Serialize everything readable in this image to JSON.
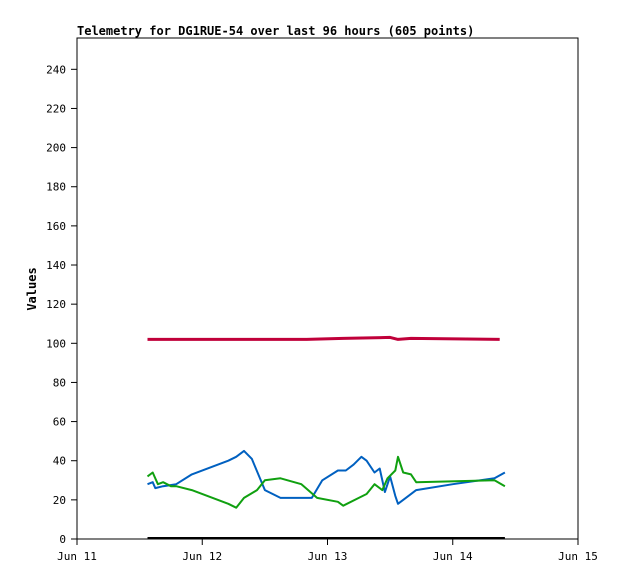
{
  "chart_data": {
    "type": "line",
    "title": "Telemetry for DG1RUE-54 over last 96 hours (605 points)",
    "xlabel": "",
    "ylabel": "Values",
    "x_ticks": [
      "Jun 11",
      "Jun 12",
      "Jun 13",
      "Jun 14",
      "Jun 15"
    ],
    "xlim": [
      "Jun 11",
      "Jun 15"
    ],
    "y_ticks": [
      0,
      20,
      40,
      60,
      80,
      100,
      120,
      140,
      160,
      180,
      200,
      220,
      240
    ],
    "ylim": [
      0,
      256
    ],
    "grid": false,
    "legend": "none",
    "series": [
      {
        "color": "#c0003a",
        "x": [
          "Jun 11 13:30",
          "Jun 12 06:00",
          "Jun 12 20:00",
          "Jun 13 03:00",
          "Jun 13 12:00",
          "Jun 13 13:30",
          "Jun 13 16:00",
          "Jun 14 09:00"
        ],
        "y": [
          102,
          102,
          102,
          102.5,
          103,
          102,
          102.5,
          102
        ]
      },
      {
        "color": "#0060c0",
        "x": [
          "Jun 11 13:30",
          "Jun 11 14:30",
          "Jun 11 15:00",
          "Jun 11 16:30",
          "Jun 11 19:00",
          "Jun 11 22:00",
          "Jun 12 02:00",
          "Jun 12 05:00",
          "Jun 12 06:30",
          "Jun 12 08:00",
          "Jun 12 09:30",
          "Jun 12 12:00",
          "Jun 12 15:00",
          "Jun 12 18:00",
          "Jun 12 21:00",
          "Jun 12 23:00",
          "Jun 13 02:00",
          "Jun 13 03:30",
          "Jun 13 05:00",
          "Jun 13 06:30",
          "Jun 13 07:30",
          "Jun 13 09:00",
          "Jun 13 10:00",
          "Jun 13 11:00",
          "Jun 13 12:00",
          "Jun 13 13:00",
          "Jun 13 13:30",
          "Jun 13 15:00",
          "Jun 13 17:00",
          "Jun 14 00:00",
          "Jun 14 08:00",
          "Jun 14 10:00"
        ],
        "y": [
          28,
          29,
          26,
          27,
          28,
          33,
          37,
          40,
          42,
          45,
          41,
          25,
          21,
          21,
          21,
          30,
          35,
          35,
          38,
          42,
          40,
          34,
          36,
          24,
          32,
          22,
          18,
          21,
          25,
          28,
          31,
          34
        ]
      },
      {
        "color": "#10a010",
        "x": [
          "Jun 11 13:30",
          "Jun 11 14:30",
          "Jun 11 15:30",
          "Jun 11 16:30",
          "Jun 11 18:00",
          "Jun 11 19:00",
          "Jun 11 22:00",
          "Jun 12 02:00",
          "Jun 12 05:00",
          "Jun 12 06:30",
          "Jun 12 08:00",
          "Jun 12 10:30",
          "Jun 12 12:00",
          "Jun 12 15:00",
          "Jun 12 19:00",
          "Jun 12 22:00",
          "Jun 13 02:00",
          "Jun 13 03:00",
          "Jun 13 06:00",
          "Jun 13 07:30",
          "Jun 13 09:00",
          "Jun 13 10:30",
          "Jun 13 11:30",
          "Jun 13 13:00",
          "Jun 13 13:30",
          "Jun 13 14:30",
          "Jun 13 16:00",
          "Jun 13 17:00",
          "Jun 14 08:00",
          "Jun 14 10:00"
        ],
        "y": [
          32,
          34,
          28,
          29,
          27,
          27,
          25,
          21,
          18,
          16,
          21,
          25,
          30,
          31,
          28,
          21,
          19,
          17,
          21,
          23,
          28,
          25,
          31,
          35,
          42,
          34,
          33,
          29,
          30,
          27
        ]
      },
      {
        "color": "#000000",
        "x": [
          "Jun 11 13:30",
          "Jun 14 10:00"
        ],
        "y": [
          0.5,
          0.5
        ]
      }
    ]
  }
}
